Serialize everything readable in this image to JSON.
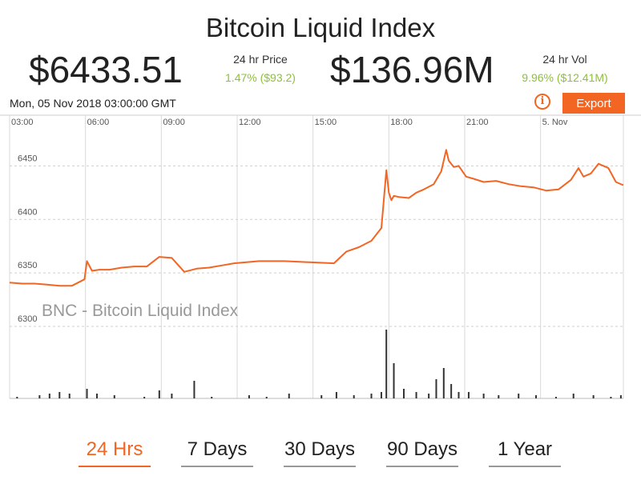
{
  "header": {
    "title": "Bitcoin Liquid Index",
    "price": "$6433.51",
    "price_label": "24 hr Price",
    "price_change": "1.47% ($93.2)",
    "volume": "$136.96M",
    "volume_label": "24 hr Vol",
    "volume_change": "9.96% ($12.41M)"
  },
  "toolbar": {
    "datetime": "Mon, 05 Nov 2018 03:00:00 GMT",
    "info_icon": "info-icon",
    "export_label": "Export"
  },
  "colors": {
    "accent": "#f26522",
    "positive": "#8fbf3f",
    "volume_bar": "#333333",
    "grid": "#d9d9d9"
  },
  "ranges": [
    {
      "label": "24 Hrs",
      "active": true
    },
    {
      "label": "7 Days",
      "active": false
    },
    {
      "label": "30 Days",
      "active": false
    },
    {
      "label": "90 Days",
      "active": false
    },
    {
      "label": "1 Year",
      "active": false
    }
  ],
  "chart_data": {
    "type": "line",
    "watermark": "BNC - Bitcoin Liquid Index",
    "x_ticks": [
      "03:00",
      "06:00",
      "09:00",
      "12:00",
      "15:00",
      "18:00",
      "21:00",
      "5. Nov"
    ],
    "y_ticks": [
      6300,
      6350,
      6400,
      6450
    ],
    "ylim": [
      6300,
      6472
    ],
    "x_range_hours": [
      0,
      24.6
    ],
    "grid": true,
    "series": [
      {
        "type": "line",
        "x": [
          0,
          0.5,
          1,
          1.5,
          2,
          2.5,
          3,
          3.1,
          3.3,
          3.6,
          4,
          4.5,
          5,
          5.5,
          6,
          6.5,
          7,
          7.5,
          8,
          8.5,
          9,
          10,
          11,
          12,
          13,
          13.5,
          14,
          14.5,
          14.9,
          15.1,
          15.2,
          15.3,
          15.4,
          15.6,
          16,
          16.3,
          16.6,
          17,
          17.3,
          17.5,
          17.6,
          17.8,
          18,
          18.3,
          18.6,
          19,
          19.5,
          20,
          20.5,
          21,
          21.5,
          22,
          22.5,
          22.8,
          23,
          23.3,
          23.6,
          24,
          24.3,
          24.6
        ],
        "values": [
          6341,
          6340,
          6340,
          6339,
          6338,
          6338,
          6344,
          6361,
          6352,
          6353,
          6353,
          6355,
          6356,
          6356,
          6365,
          6364,
          6351,
          6354,
          6355,
          6357,
          6359,
          6361,
          6361,
          6360,
          6359,
          6370,
          6374,
          6380,
          6392,
          6446,
          6425,
          6418,
          6422,
          6421,
          6420,
          6425,
          6428,
          6433,
          6445,
          6465,
          6455,
          6449,
          6450,
          6440,
          6438,
          6435,
          6436,
          6433,
          6431,
          6430,
          6427,
          6428,
          6437,
          6448,
          6440,
          6443,
          6452,
          6448,
          6435,
          6432
        ]
      },
      {
        "type": "bar",
        "name": "volume",
        "x": [
          0.3,
          1.2,
          1.6,
          2.0,
          2.4,
          3.1,
          3.5,
          4.2,
          5.4,
          6.0,
          6.5,
          7.4,
          8.1,
          9.6,
          10.3,
          11.2,
          12.5,
          13.1,
          13.8,
          14.5,
          14.9,
          15.1,
          15.4,
          15.8,
          16.3,
          16.8,
          17.1,
          17.4,
          17.7,
          18.0,
          18.4,
          19.0,
          19.6,
          20.4,
          21.1,
          21.9,
          22.6,
          23.4,
          24.1,
          24.5
        ],
        "values": [
          1,
          2,
          3,
          4,
          3,
          6,
          3,
          2,
          1,
          5,
          3,
          11,
          1,
          2,
          1,
          3,
          2,
          4,
          2,
          3,
          4,
          43,
          22,
          6,
          4,
          3,
          12,
          19,
          9,
          4,
          4,
          3,
          2,
          3,
          2,
          1,
          3,
          2,
          1,
          2
        ]
      }
    ]
  }
}
